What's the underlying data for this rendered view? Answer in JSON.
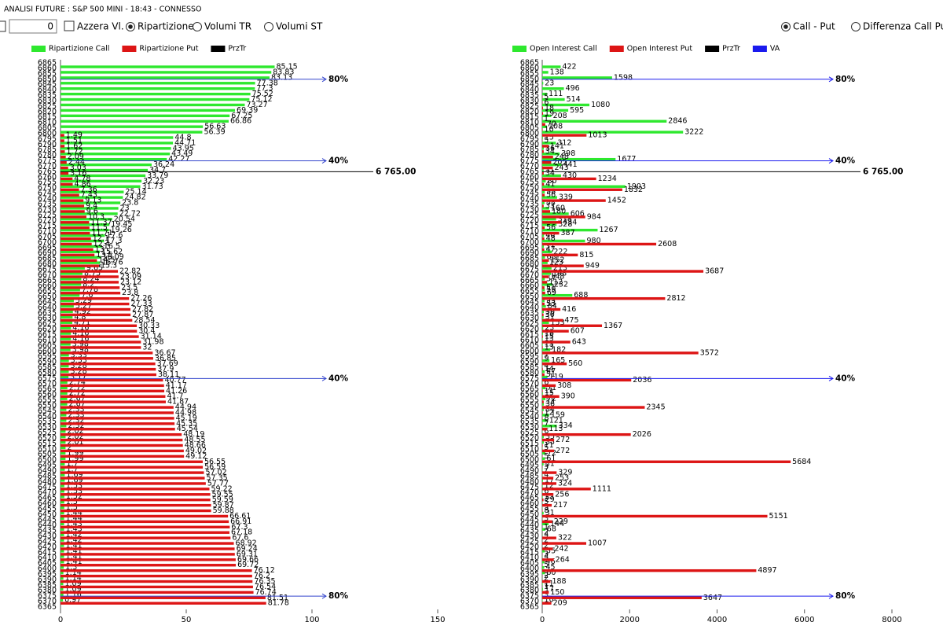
{
  "window_title": "ANALISI FUTURE : S&P 500 MINI - 18:43 - CONNESSO",
  "toolbar": {
    "input": "0",
    "checkbox": {
      "label": "Azzera Vl.",
      "checked": false
    },
    "radios": [
      {
        "label": "Ripartizione",
        "checked": true
      },
      {
        "label": "Volumi TR",
        "checked": false
      },
      {
        "label": "Volumi ST",
        "checked": false
      },
      {
        "label": "Call - Put",
        "checked": true
      },
      {
        "label": "Differenza Call Put",
        "checked": false
      }
    ]
  },
  "chart_data": [
    {
      "type": "barh",
      "categories": [
        6865,
        6860,
        6855,
        6850,
        6845,
        6840,
        6835,
        6830,
        6825,
        6820,
        6815,
        6810,
        6805,
        6800,
        6795,
        6790,
        6785,
        6780,
        6775,
        6770,
        6765,
        6760,
        6755,
        6750,
        6745,
        6740,
        6735,
        6730,
        6725,
        6720,
        6715,
        6710,
        6705,
        6700,
        6695,
        6690,
        6685,
        6680,
        6675,
        6670,
        6665,
        6660,
        6655,
        6650,
        6645,
        6640,
        6635,
        6630,
        6625,
        6620,
        6615,
        6610,
        6605,
        6600,
        6595,
        6590,
        6585,
        6580,
        6575,
        6570,
        6565,
        6560,
        6555,
        6550,
        6545,
        6540,
        6535,
        6530,
        6525,
        6520,
        6515,
        6510,
        6505,
        6500,
        6495,
        6490,
        6485,
        6480,
        6475,
        6470,
        6465,
        6460,
        6455,
        6450,
        6445,
        6440,
        6435,
        6430,
        6425,
        6420,
        6415,
        6410,
        6405,
        6400,
        6395,
        6390,
        6385,
        6380,
        6375,
        6370,
        6365
      ],
      "series": [
        {
          "name": "Ripartizione Call",
          "color": "#2ee82e",
          "values": [
            null,
            85.15,
            83.83,
            83.13,
            77.38,
            77.3,
            75.52,
            75.12,
            73.27,
            69.39,
            67.25,
            66.86,
            56.63,
            56.39,
            44.8,
            44.71,
            43.95,
            43.49,
            42.27,
            36.24,
            34.7,
            33.79,
            32.23,
            31.73,
            25.14,
            24.82,
            23.8,
            23,
            22.72,
            20.54,
            19.45,
            19.26,
            17.6,
            17.3,
            16.5,
            15.62,
            16.09,
            15.76,
            9.65,
            8.75,
            8.24,
            8.2,
            7.78,
            7.6,
            5.29,
            5.27,
            4.92,
            4.8,
            4.71,
            4.16,
            4.16,
            4.16,
            3.98,
            3.98,
            3.33,
            3.33,
            3.28,
            3.28,
            3.17,
            2.74,
            2.72,
            2.72,
            2.67,
            2.67,
            2.33,
            2.33,
            2.32,
            2.32,
            2.02,
            2.02,
            2.01,
            2,
            1.99,
            1.99,
            1.7,
            1.7,
            1.69,
            1.69,
            1.53,
            1.53,
            1.52,
            1.5,
            1.5,
            1.44,
            1.44,
            1.43,
            1.43,
            1.42,
            1.42,
            1.41,
            1.41,
            1.41,
            1.41,
            1.3,
            1.14,
            1.14,
            1.09,
            1.09,
            1.16,
            0.97,
            null
          ]
        },
        {
          "name": "Ripartizione Put",
          "color": "#dd1515",
          "values": [
            null,
            null,
            null,
            null,
            null,
            null,
            null,
            null,
            null,
            null,
            null,
            null,
            null,
            1.49,
            1.51,
            1.62,
            1.72,
            2.09,
            2.44,
            3.03,
            3.16,
            4.78,
            4.86,
            7.36,
            7.43,
            9.13,
            9.4,
            9.6,
            10.3,
            11.37,
            11.5,
            11.71,
            12.1,
            12.4,
            13,
            13.5,
            14.5,
            15.3,
            22.82,
            23.09,
            23.12,
            23.5,
            23.8,
            27.26,
            27.33,
            27.82,
            27.87,
            28.54,
            30.33,
            30.4,
            31.14,
            31.98,
            32,
            36.67,
            36.85,
            37.69,
            37.9,
            38.11,
            40.77,
            41.17,
            41.26,
            41.7,
            41.87,
            44.94,
            44.98,
            45.19,
            45.35,
            45.54,
            48.19,
            48.55,
            48.66,
            49.02,
            49.12,
            56.55,
            56.59,
            57.02,
            57.35,
            57.77,
            59.22,
            59.55,
            59.59,
            59.87,
            59.88,
            66.61,
            66.91,
            67.3,
            67.18,
            67.6,
            68.92,
            69.24,
            69.31,
            69.66,
            69.72,
            76.12,
            76.2,
            76.35,
            76.54,
            76.74,
            81.51,
            81.78,
            null
          ]
        }
      ],
      "price_line": {
        "name": "PrzTr",
        "color": "#000000",
        "value": 6765,
        "label": "6 765.00"
      },
      "levels": {
        "color": "#3344cc",
        "items": [
          {
            "value": 6850,
            "label": "80%"
          },
          {
            "value": 6775,
            "label": "40%"
          },
          {
            "value": 6575,
            "label": "40%"
          },
          {
            "value": 6375,
            "label": "80%"
          }
        ]
      },
      "xlim": [
        0,
        150
      ],
      "xticks": [
        0,
        50,
        100,
        150
      ]
    },
    {
      "type": "barh",
      "categories": [
        6865,
        6860,
        6855,
        6850,
        6845,
        6840,
        6835,
        6830,
        6825,
        6820,
        6815,
        6810,
        6805,
        6800,
        6795,
        6790,
        6785,
        6780,
        6775,
        6770,
        6765,
        6760,
        6755,
        6750,
        6745,
        6740,
        6735,
        6730,
        6725,
        6720,
        6715,
        6710,
        6705,
        6700,
        6695,
        6690,
        6685,
        6680,
        6675,
        6670,
        6665,
        6660,
        6655,
        6650,
        6645,
        6640,
        6635,
        6630,
        6625,
        6620,
        6615,
        6610,
        6605,
        6600,
        6595,
        6590,
        6585,
        6580,
        6575,
        6570,
        6565,
        6560,
        6555,
        6550,
        6545,
        6540,
        6535,
        6530,
        6525,
        6520,
        6515,
        6510,
        6505,
        6500,
        6495,
        6490,
        6485,
        6480,
        6475,
        6470,
        6465,
        6460,
        6455,
        6450,
        6445,
        6440,
        6435,
        6430,
        6425,
        6420,
        6415,
        6410,
        6405,
        6400,
        6395,
        6390,
        6385,
        6380,
        6375,
        6370,
        6365
      ],
      "series": [
        {
          "name": "Open Interest Call",
          "color": "#2ee82e",
          "values": [
            null,
            422,
            138,
            1598,
            23,
            496,
            111,
            514,
            1080,
            595,
            208,
            2846,
            108,
            3222,
            15,
            312,
            36,
            398,
            1677,
            441,
            31,
            430,
            80,
            1903,
            58,
            339,
            53,
            160,
            606,
            318,
            328,
            1267,
            40,
            980,
            37,
            222,
            63,
            123,
            213,
            198,
            57,
            232,
            59,
            688,
            53,
            84,
            36,
            31,
            153,
            23,
            18,
            13,
            13,
            182,
            7,
            165,
            4,
            57,
            119,
            6,
            71,
            15,
            72,
            36,
            34,
            159,
            121,
            334,
            6,
            35,
            35,
            5,
            72,
            61,
            31,
            7,
            4,
            17,
            12,
            6,
            13,
            5,
            5,
            31,
            3,
            144,
            68,
            4,
            2,
            2,
            55,
            4,
            46,
            45,
            60,
            2,
            11,
            17,
            3,
            10,
            null
          ]
        },
        {
          "name": "Open Interest Put",
          "color": "#dd1515",
          "values": [
            null,
            null,
            null,
            null,
            null,
            null,
            5,
            6,
            18,
            19,
            1,
            70,
            10,
            1013,
            5,
            141,
            34,
            248,
            205,
            243,
            34,
            1234,
            41,
            1832,
            56,
            1452,
            33,
            180,
            984,
            434,
            56,
            387,
            48,
            2608,
            47,
            815,
            152,
            949,
            3687,
            148,
            112,
            51,
            69,
            2812,
            53,
            416,
            30,
            475,
            1367,
            607,
            15,
            643,
            13,
            3572,
            9,
            560,
            14,
            51,
            2036,
            308,
            11,
            390,
            33,
            2345,
            12,
            8,
            7,
            113,
            2026,
            272,
            11,
            272,
            5,
            5684,
            3,
            329,
            253,
            324,
            1111,
            256,
            29,
            217,
            8,
            5151,
            229,
            1,
            2,
            322,
            1007,
            242,
            3,
            264,
            5,
            4897,
            2,
            188,
            1,
            150,
            3647,
            209,
            null
          ]
        }
      ],
      "price_line": {
        "name": "PrzTr",
        "color": "#000000",
        "value": 6765,
        "label": "6 765.00"
      },
      "levels": {
        "name": "VA",
        "color": "#1a1aee",
        "items": [
          {
            "value": 6850,
            "label": "80%"
          },
          {
            "value": 6775,
            "label": "40%"
          },
          {
            "value": 6575,
            "label": "40%"
          },
          {
            "value": 6375,
            "label": "80%"
          }
        ]
      },
      "xlim": [
        0,
        8000
      ],
      "xticks": [
        0,
        2000,
        4000,
        6000,
        8000
      ]
    }
  ]
}
